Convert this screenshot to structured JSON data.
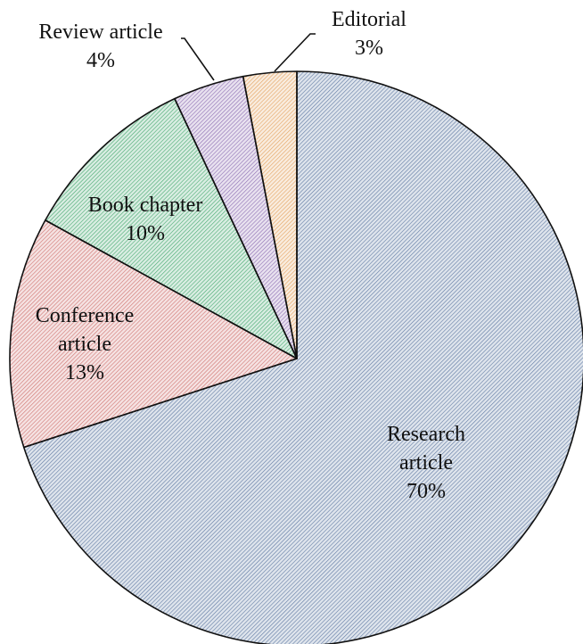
{
  "chart_data": {
    "type": "pie",
    "categories": [
      "Research article",
      "Conference article",
      "Book chapter",
      "Review article",
      "Editorial"
    ],
    "values": [
      70,
      13,
      10,
      4,
      3
    ],
    "value_labels": [
      "70%",
      "13%",
      "10%",
      "4%",
      "3%"
    ],
    "colors": [
      "#4a6796",
      "#c9605c",
      "#2f9e5e",
      "#7d5aa8",
      "#e0954a"
    ]
  }
}
